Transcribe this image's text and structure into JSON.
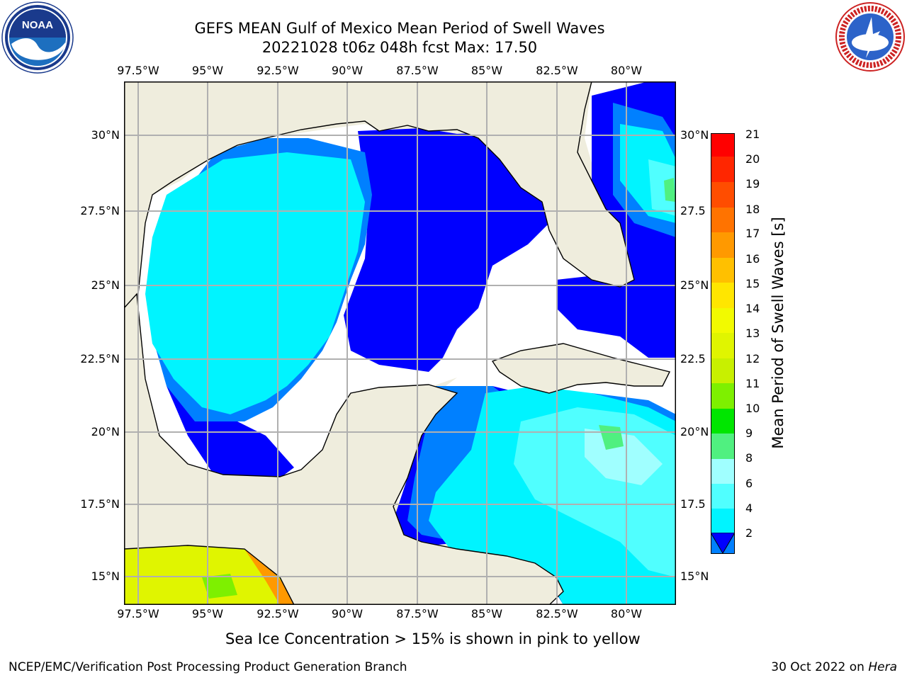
{
  "header": {
    "title_line1": "GEFS MEAN Gulf of Mexico Mean Period of Swell Waves",
    "title_line2": "20221028 t06z 048h fcst   Max: 17.50"
  },
  "logos": {
    "left": "noaa-logo",
    "right": "national-weather-service-logo"
  },
  "map": {
    "lon_labels": [
      "97.5°W",
      "95°W",
      "92.5°W",
      "90°W",
      "87.5°W",
      "85°W",
      "82.5°W",
      "80°W"
    ],
    "lat_labels_left": [
      "30°N",
      "27.5°N",
      "25°N",
      "22.5°N",
      "20°N",
      "17.5°N",
      "15°N"
    ],
    "lat_labels_right": [
      "30°N",
      "27.5",
      "25°N",
      "22.5",
      "20°N",
      "17.5",
      "15°N"
    ],
    "land_color": "#efeddd",
    "grid_color": "#b0b0b0"
  },
  "colorbar": {
    "label": "Mean Period of Swell Waves [s]",
    "ticks": [
      "21",
      "20",
      "19",
      "18",
      "17",
      "16",
      "15",
      "14",
      "13",
      "12",
      "11",
      "10",
      "9",
      "8",
      "6",
      "4",
      "2"
    ],
    "colors": [
      "#ff0000",
      "#ff2600",
      "#ff4d00",
      "#ff7300",
      "#ff9900",
      "#ffc000",
      "#ffe600",
      "#f2fa00",
      "#e0f500",
      "#c8f000",
      "#7ef000",
      "#00e600",
      "#50f080",
      "#a0ffff",
      "#50ffff",
      "#00f4ff",
      "#0080ff"
    ],
    "extend_color": "#0000ff"
  },
  "note": "Sea Ice Concentration > 15% is shown in pink to yellow",
  "footer": {
    "left": "NCEP/EMC/Verification Post Processing Product Generation Branch",
    "date": "30 Oct 2022 on ",
    "machine": "Hera"
  }
}
